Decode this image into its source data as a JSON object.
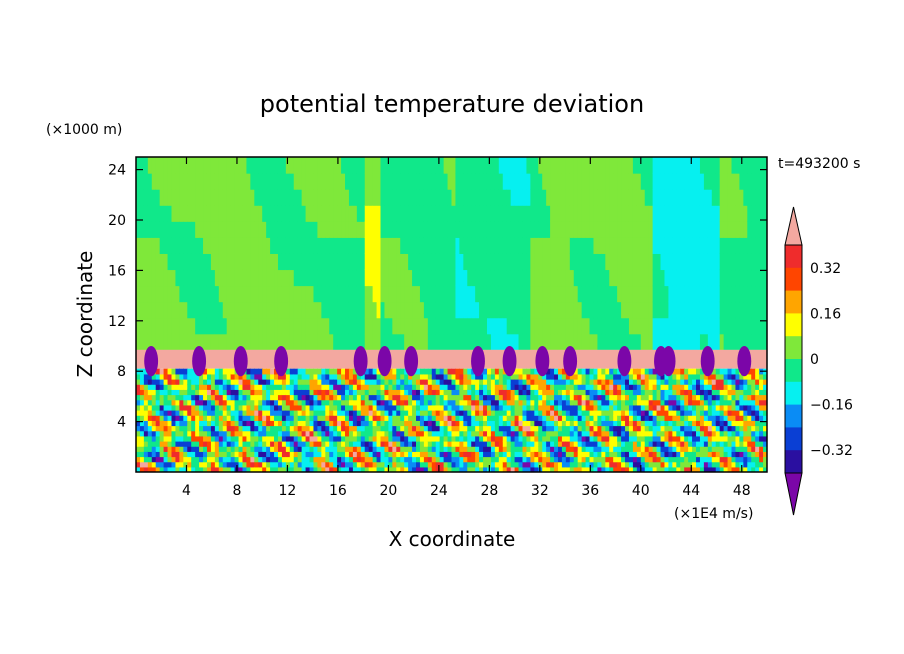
{
  "chart_data": {
    "type": "heatmap",
    "title": "potential temperature deviation",
    "xlabel": "X coordinate",
    "ylabel": "Z coordinate",
    "x_unit": "(×1E4 m/s)",
    "y_unit": "(×1000 m)",
    "time_label": "t=493200 s",
    "xlim": [
      0,
      50
    ],
    "ylim": [
      0,
      25
    ],
    "x_ticks": [
      "4",
      "8",
      "12",
      "16",
      "20",
      "24",
      "28",
      "32",
      "36",
      "40",
      "44",
      "48"
    ],
    "y_ticks": [
      "4",
      "8",
      "12",
      "16",
      "20",
      "24"
    ],
    "colorbar": {
      "labels": [
        "0.32",
        "0.16",
        "0",
        "−0.16",
        "−0.32"
      ],
      "label_values": [
        0.32,
        0.16,
        0,
        -0.16,
        -0.32
      ],
      "levels": [
        -0.4,
        -0.32,
        -0.24,
        -0.16,
        -0.08,
        0,
        0.08,
        0.16,
        0.24,
        0.32,
        0.4
      ],
      "colors": [
        "#7b06a8",
        "#2a0fa0",
        "#0a3fd4",
        "#0a8cf5",
        "#06f0f0",
        "#10e88a",
        "#7fe83a",
        "#ffff00",
        "#ffa500",
        "#ff4500",
        "#ef2c2c",
        "#f3a8a0"
      ]
    },
    "layers": [
      {
        "z_range": [
          0,
          8.2
        ],
        "description": "turbulent layer, values spanning full range"
      },
      {
        "z_range": [
          8.2,
          9.7
        ],
        "value": "above 0.4"
      },
      {
        "z_range": [
          9.7,
          25
        ],
        "value": "near 0"
      }
    ],
    "grid": false,
    "legend": "colorbar-right"
  },
  "colors": {
    "background": "#ffffff",
    "upper_region": "#7fe83a",
    "inversion_band": "#f3a8a0"
  }
}
